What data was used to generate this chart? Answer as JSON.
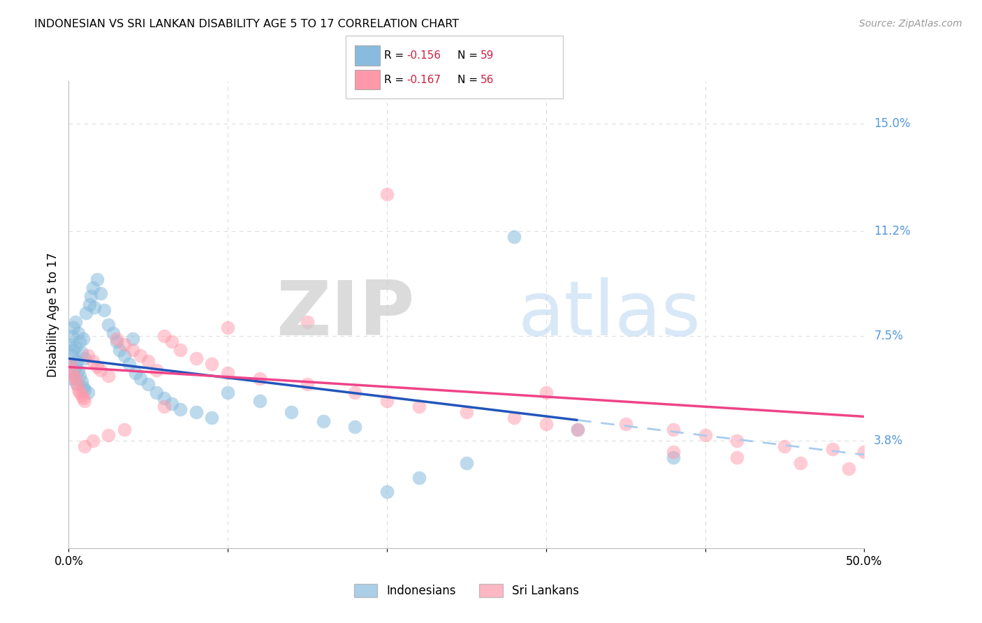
{
  "title": "INDONESIAN VS SRI LANKAN DISABILITY AGE 5 TO 17 CORRELATION CHART",
  "source": "Source: ZipAtlas.com",
  "ylabel": "Disability Age 5 to 17",
  "right_y_ticks": [
    0.038,
    0.075,
    0.112,
    0.15
  ],
  "right_y_labels": [
    "3.8%",
    "7.5%",
    "11.2%",
    "15.0%"
  ],
  "blue_scatter_color": "#88BBDD",
  "pink_scatter_color": "#FF99AA",
  "blue_line_color": "#2255BB",
  "pink_line_color": "#EE4488",
  "blue_dash_color": "#AACCEE",
  "grid_color": "#DDDDDD",
  "bg_color": "#FFFFFF",
  "xmin": 0.0,
  "xmax": 0.5,
  "ymin": 0.0,
  "ymax": 0.165,
  "indonesian_x": [
    0.001,
    0.001,
    0.002,
    0.002,
    0.002,
    0.003,
    0.003,
    0.003,
    0.004,
    0.004,
    0.004,
    0.005,
    0.005,
    0.006,
    0.006,
    0.007,
    0.007,
    0.008,
    0.008,
    0.009,
    0.009,
    0.01,
    0.01,
    0.011,
    0.012,
    0.013,
    0.014,
    0.015,
    0.016,
    0.018,
    0.02,
    0.022,
    0.025,
    0.028,
    0.03,
    0.032,
    0.035,
    0.038,
    0.04,
    0.042,
    0.045,
    0.05,
    0.055,
    0.06,
    0.065,
    0.07,
    0.08,
    0.09,
    0.1,
    0.12,
    0.14,
    0.16,
    0.18,
    0.2,
    0.22,
    0.25,
    0.28,
    0.32,
    0.38
  ],
  "indonesian_y": [
    0.065,
    0.072,
    0.06,
    0.068,
    0.075,
    0.062,
    0.07,
    0.078,
    0.064,
    0.071,
    0.08,
    0.058,
    0.066,
    0.063,
    0.076,
    0.061,
    0.073,
    0.059,
    0.069,
    0.057,
    0.074,
    0.056,
    0.067,
    0.083,
    0.055,
    0.086,
    0.089,
    0.092,
    0.085,
    0.095,
    0.09,
    0.084,
    0.079,
    0.076,
    0.073,
    0.07,
    0.068,
    0.065,
    0.074,
    0.062,
    0.06,
    0.058,
    0.055,
    0.053,
    0.051,
    0.049,
    0.048,
    0.046,
    0.055,
    0.052,
    0.048,
    0.045,
    0.043,
    0.02,
    0.025,
    0.03,
    0.11,
    0.042,
    0.032
  ],
  "srilankan_x": [
    0.001,
    0.002,
    0.003,
    0.004,
    0.005,
    0.006,
    0.007,
    0.008,
    0.009,
    0.01,
    0.012,
    0.015,
    0.018,
    0.02,
    0.025,
    0.03,
    0.035,
    0.04,
    0.045,
    0.05,
    0.055,
    0.06,
    0.065,
    0.07,
    0.08,
    0.09,
    0.1,
    0.12,
    0.15,
    0.18,
    0.2,
    0.22,
    0.25,
    0.28,
    0.3,
    0.32,
    0.35,
    0.38,
    0.4,
    0.42,
    0.45,
    0.48,
    0.5,
    0.1,
    0.2,
    0.3,
    0.15,
    0.06,
    0.035,
    0.025,
    0.015,
    0.01,
    0.38,
    0.42,
    0.46,
    0.49
  ],
  "srilankan_y": [
    0.065,
    0.063,
    0.061,
    0.06,
    0.058,
    0.056,
    0.055,
    0.054,
    0.053,
    0.052,
    0.068,
    0.066,
    0.064,
    0.063,
    0.061,
    0.074,
    0.072,
    0.07,
    0.068,
    0.066,
    0.063,
    0.075,
    0.073,
    0.07,
    0.067,
    0.065,
    0.062,
    0.06,
    0.058,
    0.055,
    0.052,
    0.05,
    0.048,
    0.046,
    0.044,
    0.042,
    0.044,
    0.042,
    0.04,
    0.038,
    0.036,
    0.035,
    0.034,
    0.078,
    0.125,
    0.055,
    0.08,
    0.05,
    0.042,
    0.04,
    0.038,
    0.036,
    0.034,
    0.032,
    0.03,
    0.028
  ]
}
